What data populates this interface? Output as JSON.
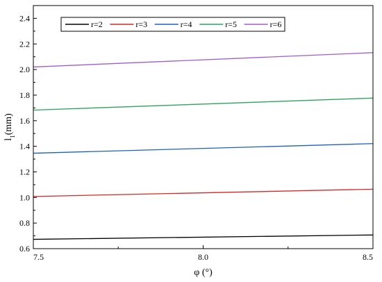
{
  "chart_data": {
    "type": "line",
    "title": "",
    "xlabel": "φ (°)",
    "ylabel_main": "l",
    "ylabel_sub": "1",
    "ylabel_unit": "(mm)",
    "xlim": [
      7.5,
      8.5
    ],
    "ylim": [
      0.6,
      2.5
    ],
    "xticks": [
      "7.5",
      "8.0",
      "8.5"
    ],
    "xtick_values": [
      7.5,
      8.0,
      8.5
    ],
    "yticks": [
      "0.6",
      "0.8",
      "1.0",
      "1.2",
      "1.4",
      "1.6",
      "1.8",
      "2.0",
      "2.2",
      "2.4"
    ],
    "ytick_values": [
      0.6,
      0.8,
      1.0,
      1.2,
      1.4,
      1.6,
      1.8,
      2.0,
      2.2,
      2.4
    ],
    "grid": false,
    "legend_position": "top",
    "x": [
      7.5,
      8.5
    ],
    "series": [
      {
        "name": "r=2",
        "color": "#000000",
        "values": [
          0.673,
          0.707
        ]
      },
      {
        "name": "r=3",
        "color": "#d62728",
        "values": [
          1.008,
          1.065
        ]
      },
      {
        "name": "r=4",
        "color": "#1f5fbf",
        "values": [
          1.346,
          1.421
        ]
      },
      {
        "name": "r=5",
        "color": "#2ca25f",
        "values": [
          1.683,
          1.777
        ]
      },
      {
        "name": "r=6",
        "color": "#a05ccc",
        "values": [
          2.02,
          2.132
        ]
      }
    ]
  }
}
